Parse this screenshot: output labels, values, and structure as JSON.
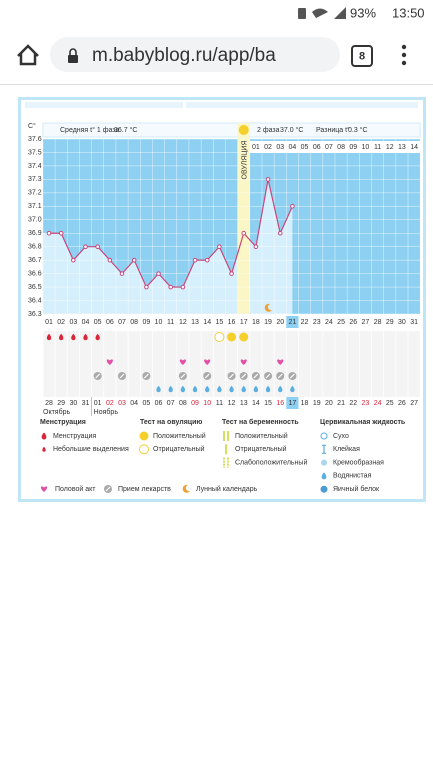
{
  "status_bar": {
    "battery": "93%",
    "time": "13:50"
  },
  "browser": {
    "url": "m.babyblog.ru/app/ba",
    "tabs": "8"
  },
  "chart_data": {
    "type": "line",
    "y_unit": "C°",
    "phase1_label": "Средняя t° 1 фаза",
    "phase1_value": "36.7 °C",
    "phase2_label": "2 фаза",
    "phase2_value": "37.0 °C",
    "diff_label": "Разница t°",
    "diff_value": "0.3 °C",
    "ovulation_label": "ОВУЛЯЦИЯ",
    "ovulation_day": "17",
    "post_ovulation_days": [
      "01",
      "02",
      "03",
      "04",
      "05",
      "06",
      "07",
      "08",
      "09",
      "10",
      "11",
      "12",
      "13",
      "14"
    ],
    "categories": [
      "01",
      "02",
      "03",
      "04",
      "05",
      "06",
      "07",
      "08",
      "09",
      "10",
      "11",
      "12",
      "13",
      "14",
      "15",
      "16",
      "17",
      "18",
      "19",
      "20",
      "21",
      "22",
      "23",
      "24",
      "25",
      "26",
      "27",
      "28",
      "29",
      "30",
      "31"
    ],
    "values": [
      36.9,
      36.9,
      36.7,
      36.8,
      36.8,
      36.7,
      36.6,
      36.7,
      36.5,
      36.6,
      36.5,
      36.5,
      36.7,
      36.7,
      36.8,
      36.6,
      36.9,
      36.8,
      37.3,
      36.9,
      37.1,
      null,
      null,
      null,
      null,
      null,
      null,
      null,
      null,
      null,
      null
    ],
    "color": "#c9477a",
    "ylim": [
      36.3,
      37.6
    ],
    "yticks": [
      37.6,
      37.5,
      37.4,
      37.3,
      37.2,
      37.1,
      {
        "value": 37,
        "label": "37.0"
      },
      36.9,
      36.8,
      36.7,
      36.6,
      36.5,
      36.4,
      36.3
    ],
    "grid": true,
    "menstruation": [
      "01",
      "02",
      "03",
      "04",
      "05"
    ],
    "ovulation_test_negative": [
      "15"
    ],
    "ovulation_test_positive": [
      "16",
      "17"
    ],
    "intercourse": [
      "06",
      "12",
      "14",
      "17",
      "20"
    ],
    "medication": [
      "05",
      "07",
      "09",
      "12",
      "14",
      "16",
      "17",
      "18",
      "19",
      "20",
      "21"
    ],
    "cervical": [
      "10",
      "11",
      "12",
      "13",
      "14",
      "15",
      "16",
      "17",
      "18",
      "19",
      "20",
      "21"
    ],
    "lunar": [
      "19"
    ],
    "cycle_days": [
      "28",
      "29",
      "30",
      "31",
      "01",
      "02",
      "03",
      "04",
      "05",
      "06",
      "07",
      "08",
      "09",
      "10",
      "11",
      "12",
      "13",
      "14",
      "15",
      "16",
      "17",
      "18",
      "19",
      "20",
      "21",
      "22",
      "23",
      "24",
      "25",
      "26",
      "27"
    ],
    "cycle_days_red": [
      "02",
      "03",
      "09",
      "10",
      "16",
      "23",
      "24"
    ],
    "months": [
      "Октябрь",
      "Ноябрь"
    ]
  },
  "legend": {
    "groups": [
      {
        "title": "Менструация",
        "items": [
          "Менструация",
          "Небольшие выделения"
        ]
      },
      {
        "title": "Тест на овуляцию",
        "items": [
          "Положительный",
          "Отрицательный"
        ]
      },
      {
        "title": "Тест на беременность",
        "items": [
          "Положительный",
          "Отрицательный",
          "Слабоположительный"
        ]
      },
      {
        "title": "Цервикальная жидкость",
        "items": [
          "Сухо",
          "Клейкая",
          "Кремообразная",
          "Водянистая",
          "Яичный белок"
        ]
      }
    ],
    "bottom": [
      "Половой акт",
      "Прием лекарств",
      "Лунный календарь"
    ]
  }
}
